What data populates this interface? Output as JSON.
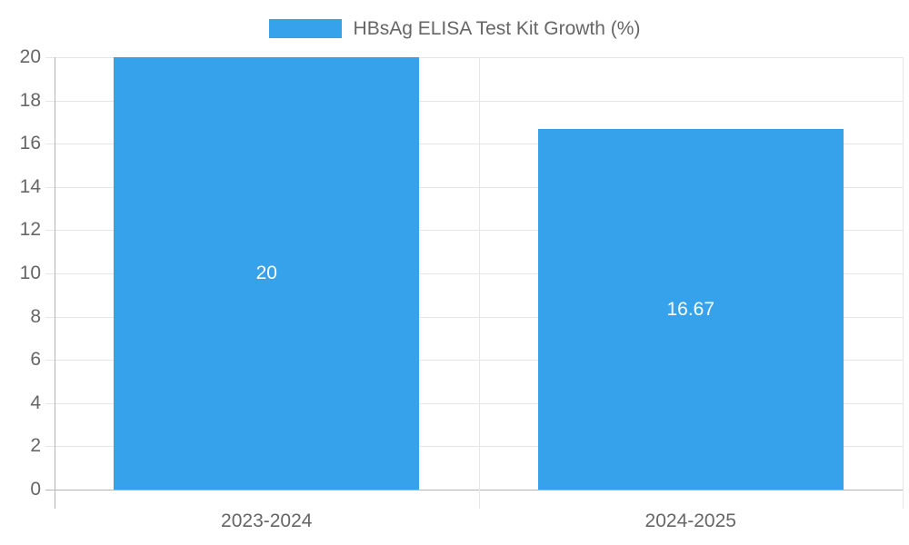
{
  "legend": {
    "label": "HBsAg ELISA Test Kit Growth (%)"
  },
  "chart_data": {
    "type": "bar",
    "title": "HBsAg ELISA Test Kit Growth (%)",
    "categories": [
      "2023-2024",
      "2024-2025"
    ],
    "series": [
      {
        "name": "HBsAg ELISA Test Kit Growth (%)",
        "values": [
          20,
          16.67
        ]
      }
    ],
    "value_labels": [
      "20",
      "16.67"
    ],
    "xlabel": "",
    "ylabel": "",
    "ylim": [
      0,
      20
    ],
    "ytick_step": 2,
    "ytick_labels": [
      "0",
      "2",
      "4",
      "6",
      "8",
      "10",
      "12",
      "14",
      "16",
      "18",
      "20"
    ],
    "grid": true,
    "legend_position": "top",
    "colors": {
      "bar": "#36A2EB",
      "value_label": "#ffffff",
      "axis_text": "#666666",
      "gridline": "#e6e6e6",
      "axis_line": "#b4b4b4"
    }
  }
}
